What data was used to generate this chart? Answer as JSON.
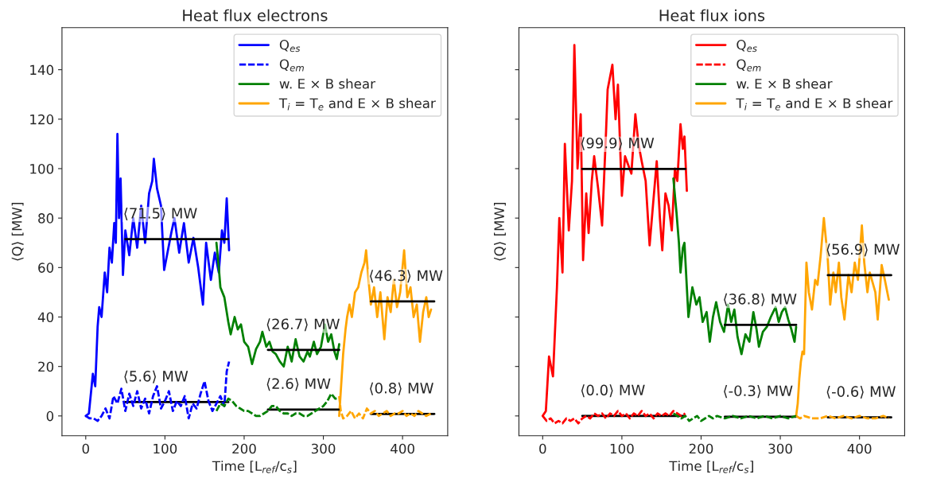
{
  "chart_data": [
    {
      "type": "line",
      "title": "Heat flux electrons",
      "xlabel": "Time [L$_{ref}$/c$_{s}$]",
      "ylabel": "⟨Q⟩ [MW]",
      "xlim": [
        -30,
        457
      ],
      "ylim": [
        -8,
        157
      ],
      "xticks": [
        0,
        100,
        200,
        300,
        400
      ],
      "yticks": [
        0,
        20,
        40,
        60,
        80,
        100,
        120,
        140
      ],
      "grid": false,
      "legend": "top right",
      "series": [
        {
          "name": "Q$_{es}$",
          "color": "#0000ff",
          "line_style": "solid",
          "x": [
            0,
            4,
            9,
            12,
            15,
            17,
            20,
            24,
            27,
            30,
            33,
            36,
            38,
            40,
            42,
            44,
            47,
            50,
            55,
            60,
            65,
            70,
            75,
            80,
            84,
            86,
            90,
            95,
            99,
            103,
            108,
            112,
            118,
            124,
            130,
            136,
            142,
            148,
            152,
            158,
            163,
            168,
            172,
            175,
            178,
            181
          ],
          "values": [
            0,
            1,
            17,
            12,
            36,
            44,
            40,
            58,
            50,
            68,
            62,
            78,
            70,
            114,
            80,
            96,
            57,
            75,
            65,
            80,
            68,
            85,
            70,
            90,
            95,
            104,
            92,
            85,
            59,
            null,
            74,
            80,
            66,
            78,
            62,
            72,
            60,
            45,
            70,
            55,
            66,
            58,
            75,
            70,
            88,
            67
          ]
        },
        {
          "name": "Q$_{em}$",
          "color": "#0000ff",
          "line_style": "dashed",
          "x": [
            0,
            5,
            10,
            15,
            20,
            25,
            30,
            35,
            40,
            45,
            50,
            55,
            60,
            65,
            70,
            75,
            80,
            85,
            90,
            95,
            100,
            105,
            110,
            115,
            120,
            125,
            130,
            135,
            140,
            145,
            150,
            155,
            160,
            165,
            170,
            175,
            178,
            181
          ],
          "values": [
            0,
            -1,
            -1,
            -2,
            0,
            3,
            -1,
            8,
            5,
            11,
            2,
            9,
            4,
            10,
            3,
            7,
            1,
            8,
            12,
            3,
            6,
            10,
            2,
            6,
            4,
            8,
            -1,
            5,
            3,
            9,
            14,
            6,
            2,
            5,
            8,
            4,
            18,
            22
          ]
        },
        {
          "name": "w. E × B shear",
          "color": "#008000",
          "line_style": "solid",
          "x": [
            165,
            168,
            170,
            175,
            180,
            183,
            188,
            192,
            196,
            200,
            205,
            210,
            215,
            220,
            223,
            228,
            232,
            236,
            240,
            245,
            250,
            255,
            260,
            265,
            270,
            275,
            280,
            283,
            288,
            292,
            297,
            302,
            306,
            310,
            314,
            317,
            320
          ],
          "values": [
            70,
            60,
            52,
            48,
            38,
            33,
            40,
            35,
            37,
            30,
            28,
            21,
            27,
            30,
            34,
            28,
            30,
            26,
            25,
            22,
            20,
            28,
            22,
            31,
            24,
            22,
            26,
            24,
            30,
            25,
            28,
            37,
            30,
            33,
            26,
            23,
            29
          ]
        },
        {
          "color": "#008000",
          "line_style": "dashed",
          "x": [
            165,
            170,
            175,
            180,
            185,
            190,
            195,
            200,
            205,
            210,
            215,
            220,
            225,
            230,
            235,
            240,
            245,
            250,
            255,
            260,
            265,
            270,
            275,
            280,
            285,
            290,
            295,
            300,
            305,
            310,
            315,
            320
          ],
          "values": [
            2,
            5,
            4,
            7,
            6,
            4,
            3,
            2,
            2,
            1,
            0,
            0,
            1,
            2,
            4,
            4,
            2,
            1,
            1,
            0,
            1,
            1,
            0,
            0,
            1,
            2,
            3,
            4,
            6,
            9,
            7,
            7
          ]
        },
        {
          "name": "T$_{i}$ = T$_{e}$ and E × B shear",
          "color": "#ffa500",
          "line_style": "solid",
          "x": [
            320,
            322,
            325,
            328,
            330,
            333,
            336,
            340,
            344,
            348,
            352,
            354,
            357,
            360,
            364,
            368,
            372,
            377,
            381,
            385,
            389,
            393,
            397,
            402,
            406,
            410,
            414,
            418,
            422,
            426,
            430,
            433,
            436
          ],
          "values": [
            0,
            10,
            25,
            35,
            40,
            45,
            40,
            50,
            52,
            58,
            62,
            67,
            55,
            45,
            52,
            40,
            50,
            31,
            48,
            42,
            55,
            44,
            50,
            67,
            48,
            52,
            40,
            45,
            30,
            42,
            48,
            40,
            43
          ]
        },
        {
          "color": "#ffa500",
          "line_style": "dashed",
          "x": [
            320,
            322,
            325,
            330,
            335,
            340,
            345,
            350,
            355,
            360,
            365,
            370,
            375,
            380,
            385,
            390,
            395,
            400,
            405,
            410,
            415,
            420,
            425,
            430,
            436
          ],
          "values": [
            8,
            2,
            -1,
            0,
            2,
            -1,
            1,
            -1,
            3,
            1,
            2,
            0,
            1,
            2,
            0,
            1,
            1,
            2,
            0,
            1,
            0,
            2,
            1,
            0,
            1
          ]
        },
        {
          "color": "#000000",
          "line_style": "solid",
          "x": [
            50,
            180
          ],
          "values": [
            71.5,
            71.5
          ]
        },
        {
          "color": "#000000",
          "line_style": "solid",
          "x": [
            50,
            180
          ],
          "values": [
            5.6,
            5.6
          ]
        },
        {
          "color": "#000000",
          "line_style": "solid",
          "x": [
            230,
            320
          ],
          "values": [
            26.7,
            26.7
          ]
        },
        {
          "color": "#000000",
          "line_style": "solid",
          "x": [
            230,
            320
          ],
          "values": [
            2.6,
            2.6
          ]
        },
        {
          "color": "#000000",
          "line_style": "solid",
          "x": [
            360,
            440
          ],
          "values": [
            46.3,
            46.3
          ]
        },
        {
          "color": "#000000",
          "line_style": "solid",
          "x": [
            360,
            440
          ],
          "values": [
            0.8,
            0.8
          ]
        }
      ],
      "annotations": [
        {
          "text": "⟨71.5⟩ MW",
          "x": 50,
          "y": 71.5
        },
        {
          "text": "⟨5.6⟩ MW",
          "x": 50,
          "y": 5.6
        },
        {
          "text": "⟨26.7⟩ MW",
          "x": 230,
          "y": 26.7
        },
        {
          "text": "⟨2.6⟩ MW",
          "x": 230,
          "y": 2.6
        },
        {
          "text": "⟨46.3⟩ MW",
          "x": 360,
          "y": 46.3
        },
        {
          "text": "⟨0.8⟩ MW",
          "x": 360,
          "y": 0.8
        }
      ]
    },
    {
      "type": "line",
      "title": "Heat flux ions",
      "xlabel": "Time [L$_{ref}$/c$_{s}$]",
      "ylabel": "⟨Q⟩ [MW]",
      "xlim": [
        -30,
        457
      ],
      "ylim": [
        -8,
        157
      ],
      "xticks": [
        0,
        100,
        200,
        300,
        400
      ],
      "yticks": [
        0,
        20,
        40,
        60,
        80,
        100,
        120,
        140
      ],
      "tick_labels": "x",
      "grid": false,
      "legend": "top right",
      "series": [
        {
          "name": "Q$_{es}$",
          "color": "#ff0000",
          "line_style": "solid",
          "x": [
            0,
            4,
            8,
            13,
            18,
            21,
            25,
            28,
            33,
            37,
            40,
            44,
            48,
            51,
            55,
            58,
            62,
            65,
            70,
            75,
            80,
            82,
            88,
            92,
            95,
            100,
            104,
            108,
            112,
            117,
            121,
            125,
            130,
            135,
            140,
            144,
            148,
            151,
            155,
            159,
            163,
            167,
            170,
            174,
            177,
            179,
            182
          ],
          "values": [
            0,
            2,
            24,
            16,
            52,
            80,
            58,
            110,
            75,
            95,
            150,
            100,
            122,
            63,
            90,
            74,
            95,
            105,
            92,
            77,
            115,
            132,
            142,
            120,
            134,
            89,
            105,
            null,
            98,
            122,
            110,
            103,
            95,
            69,
            88,
            103,
            80,
            67,
            90,
            85,
            75,
            100,
            95,
            118,
            108,
            113,
            91
          ]
        },
        {
          "name": "Q$_{em}$",
          "color": "#ff0000",
          "line_style": "dashed",
          "x": [
            0,
            5,
            10,
            15,
            20,
            25,
            30,
            35,
            40,
            45,
            50,
            55,
            60,
            65,
            70,
            75,
            80,
            85,
            90,
            95,
            100,
            105,
            110,
            115,
            120,
            125,
            130,
            135,
            140,
            145,
            150,
            155,
            160,
            165,
            170,
            175,
            180
          ],
          "values": [
            0,
            -2,
            -1,
            -3,
            -2,
            -3,
            -1,
            -2,
            -1,
            -3,
            -1,
            0,
            -1,
            1,
            0,
            1,
            -1,
            1,
            0,
            2,
            0,
            1,
            -1,
            1,
            0,
            2,
            0,
            1,
            -1,
            1,
            0,
            1,
            0,
            2,
            1,
            0,
            1
          ]
        },
        {
          "name": "w. E × B shear",
          "color": "#008000",
          "line_style": "solid",
          "x": [
            165,
            169,
            172,
            174,
            177,
            179,
            182,
            184,
            189,
            194,
            198,
            202,
            207,
            211,
            215,
            219,
            224,
            229,
            234,
            238,
            242,
            246,
            251,
            256,
            261,
            266,
            270,
            273,
            278,
            283,
            288,
            294,
            298,
            302,
            306,
            310,
            314,
            318,
            320
          ],
          "values": [
            96,
            82,
            70,
            58,
            68,
            70,
            52,
            40,
            52,
            45,
            48,
            38,
            42,
            30,
            40,
            46,
            38,
            34,
            45,
            38,
            43,
            32,
            25,
            33,
            30,
            42,
            35,
            28,
            34,
            36,
            40,
            44,
            38,
            42,
            44,
            39,
            35,
            30,
            36
          ]
        },
        {
          "color": "#008000",
          "line_style": "dashed",
          "x": [
            165,
            170,
            175,
            180,
            185,
            190,
            195,
            200,
            205,
            210,
            215,
            220,
            230,
            240,
            250,
            260,
            270,
            280,
            290,
            300,
            310,
            320
          ],
          "values": [
            1,
            0,
            -1,
            0,
            -2,
            -1,
            0,
            -2,
            -1,
            0,
            -1,
            0,
            -1,
            0,
            -1,
            0,
            -1,
            0,
            -1,
            0,
            -1,
            0
          ]
        },
        {
          "name": "T$_{i}$ = T$_{e}$ and E × B shear",
          "color": "#ffa500",
          "line_style": "solid",
          "x": [
            320,
            322,
            324,
            326,
            328,
            330,
            333,
            336,
            340,
            344,
            347,
            351,
            355,
            358,
            360,
            363,
            367,
            370,
            374,
            377,
            381,
            386,
            390,
            394,
            398,
            403,
            406,
            410,
            413,
            417,
            420,
            423,
            426,
            428,
            432,
            437
          ],
          "values": [
            0,
            5,
            15,
            22,
            26,
            25,
            62,
            50,
            43,
            55,
            53,
            65,
            80,
            70,
            63,
            45,
            58,
            50,
            62,
            48,
            39,
            57,
            50,
            62,
            55,
            77,
            62,
            50,
            58,
            null,
            50,
            39,
            52,
            61,
            55,
            47
          ]
        },
        {
          "color": "#ffa500",
          "line_style": "dashed",
          "x": [
            320,
            325,
            330,
            340,
            350,
            360,
            370,
            380,
            390,
            400,
            410,
            420,
            430,
            437
          ],
          "values": [
            0,
            -1,
            0,
            -1,
            -1,
            0,
            -1,
            0,
            -1,
            0,
            -1,
            -1,
            0,
            -1
          ]
        },
        {
          "color": "#000000",
          "line_style": "solid",
          "x": [
            50,
            180
          ],
          "values": [
            99.9,
            99.9
          ]
        },
        {
          "color": "#000000",
          "line_style": "solid",
          "x": [
            50,
            180
          ],
          "values": [
            0.0,
            0.0
          ]
        },
        {
          "color": "#000000",
          "line_style": "solid",
          "x": [
            230,
            320
          ],
          "values": [
            36.8,
            36.8
          ]
        },
        {
          "color": "#000000",
          "line_style": "solid",
          "x": [
            230,
            320
          ],
          "values": [
            -0.3,
            -0.3
          ]
        },
        {
          "color": "#000000",
          "line_style": "solid",
          "x": [
            360,
            440
          ],
          "values": [
            56.9,
            56.9
          ]
        },
        {
          "color": "#000000",
          "line_style": "solid",
          "x": [
            360,
            440
          ],
          "values": [
            -0.6,
            -0.6
          ]
        }
      ],
      "annotations": [
        {
          "text": "⟨99.9⟩ MW",
          "x": 50,
          "y": 99.9
        },
        {
          "text": "⟨0.0⟩ MW",
          "x": 50,
          "y": 0.0
        },
        {
          "text": "⟨36.8⟩ MW",
          "x": 230,
          "y": 36.8
        },
        {
          "text": "⟨-0.3⟩ MW",
          "x": 230,
          "y": -0.3
        },
        {
          "text": "⟨56.9⟩ MW",
          "x": 360,
          "y": 56.9
        },
        {
          "text": "⟨-0.6⟩ MW",
          "x": 360,
          "y": -0.6
        }
      ]
    }
  ]
}
